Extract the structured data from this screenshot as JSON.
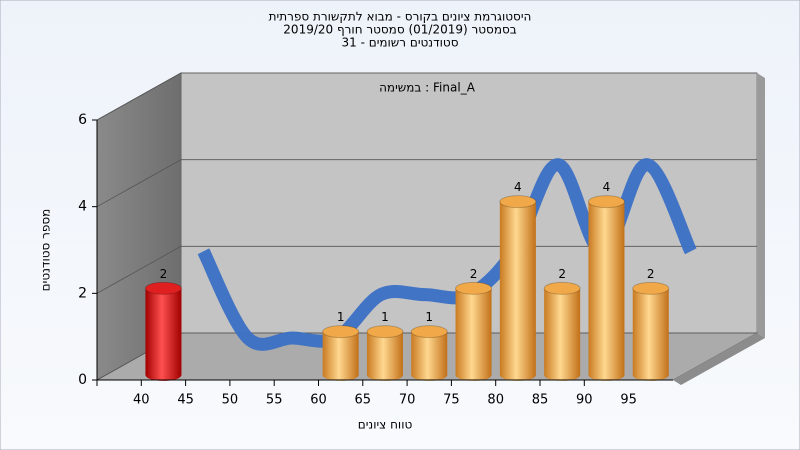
{
  "chart_data": {
    "type": "bar3d",
    "title_lines": [
      "היסטוגרמת ציונים בקורס - מבוא לתקשורת ספרתית",
      "בסמסטר  (01/2019)  סמסטר חורף 2019/20",
      "סטודנטים רשומים - 31"
    ],
    "annotation": "במשימה : Final_A",
    "ylabel": "מספר סטודנטים",
    "xlabel": "טווח ציונים",
    "categories": [
      "40",
      "45",
      "50",
      "55",
      "60",
      "65",
      "70",
      "75",
      "80",
      "85",
      "90",
      "95"
    ],
    "values": [
      2,
      0,
      0,
      0,
      1,
      1,
      1,
      2,
      4,
      2,
      4,
      2
    ],
    "colors": [
      "#e02020",
      "#f0a848",
      "#f0a848",
      "#f0a848",
      "#f0a848",
      "#f0a848",
      "#f0a848",
      "#f0a848",
      "#f0a848",
      "#f0a848",
      "#f0a848",
      "#f0a848"
    ],
    "trend_color": "#3a70c4",
    "ylim": [
      0,
      6
    ],
    "yticks": [
      0,
      2,
      4,
      6
    ],
    "grid": true
  }
}
